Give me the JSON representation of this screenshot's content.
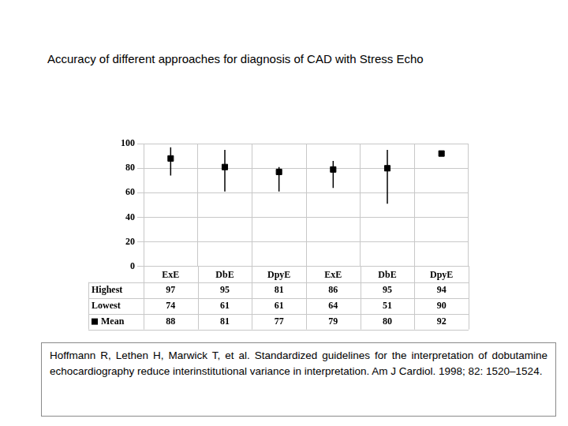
{
  "chart_data": {
    "type": "line",
    "title": "Accuracy of different approaches for diagnosis of CAD with Stress Echo",
    "categories": [
      "ExE",
      "DbE",
      "DpyE",
      "ExE",
      "DbE",
      "DpyE"
    ],
    "series": [
      {
        "name": "Mean",
        "color": "#000000",
        "marker": "square",
        "line_style": "none",
        "values": [
          88,
          81,
          77,
          79,
          80,
          92
        ]
      }
    ],
    "error_bars": {
      "high_name": "Highest",
      "high": [
        97,
        95,
        81,
        86,
        95,
        94
      ],
      "low_name": "Lowest",
      "low": [
        74,
        61,
        61,
        64,
        51,
        90
      ]
    },
    "ylim": [
      0,
      100
    ],
    "yticks": [
      0,
      20,
      40,
      60,
      80,
      100
    ],
    "grid": true,
    "source": "Hoffmann R, Lethen H, Marwick T, et al. Standardized guidelines for the interpretation of dobutamine echocardiography reduce interinstitutional variance in interpretation. Am J Cardiol. 1998; 82: 1520–1524."
  }
}
